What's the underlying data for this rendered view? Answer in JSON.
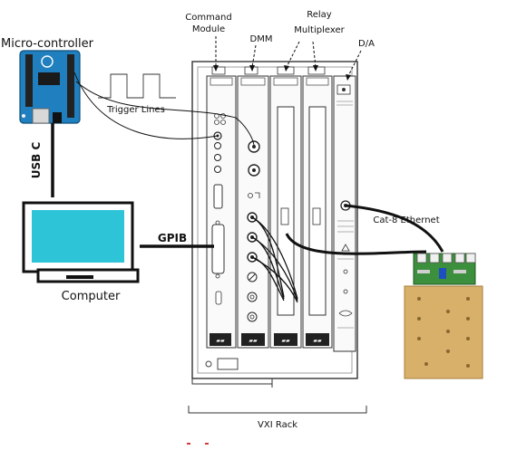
{
  "labels": {
    "command_module_line1": "Command",
    "command_module_line2": "Module",
    "dmm": "DMM",
    "relay_line1": "Relay",
    "relay_line2": "Multiplexer",
    "da": "D/A",
    "microcontroller": "Micro-controller",
    "trigger_lines": "Trigger Lines",
    "usb_c": "USB C",
    "gpib": "GPIB",
    "computer": "Computer",
    "cat8": "Cat-8 Ethernet",
    "vxi_rack": "VXI Rack"
  },
  "colors": {
    "arduino_blue": "#1f7fbf",
    "monitor_screen": "#2ec4d8",
    "breakout_green": "#3c8f3c",
    "wood_board": "#d8b06a",
    "cable": "#111111"
  }
}
